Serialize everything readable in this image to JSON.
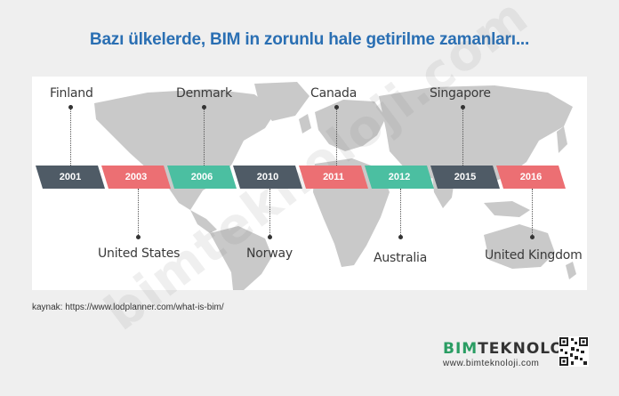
{
  "title": "Bazı ülkelerde, BIM in zorunlu hale getirilme zamanları...",
  "timeline": [
    {
      "year": "2001",
      "country": "Finland",
      "color": "#4f5b66",
      "label_pos": "top"
    },
    {
      "year": "2003",
      "country": "United States",
      "color": "#ec6f73",
      "label_pos": "bottom"
    },
    {
      "year": "2006",
      "country": "Denmark",
      "color": "#4bbfa1",
      "label_pos": "top"
    },
    {
      "year": "2010",
      "country": "Norway",
      "color": "#4f5b66",
      "label_pos": "bottom"
    },
    {
      "year": "2011",
      "country": "Canada",
      "color": "#ec6f73",
      "label_pos": "top"
    },
    {
      "year": "2012",
      "country": "Australia",
      "color": "#4bbfa1",
      "label_pos": "bottom"
    },
    {
      "year": "2015",
      "country": "Singapore",
      "color": "#4f5b66",
      "label_pos": "top"
    },
    {
      "year": "2016",
      "country": "United Kingdom",
      "color": "#ec6f73",
      "label_pos": "bottom"
    }
  ],
  "source": "kaynak: https://www.lodplanner.com/what-is-bim/",
  "watermark": "bimteknoloji.com",
  "logo": {
    "brand_prefix": "BIM",
    "brand_suffix": "TEKNOLOJİ",
    "url": "www.bimteknoloji.com"
  },
  "colors": {
    "title": "#2a6fb3",
    "map": "#c9c9c9",
    "brand_green": "#2a9d63"
  }
}
